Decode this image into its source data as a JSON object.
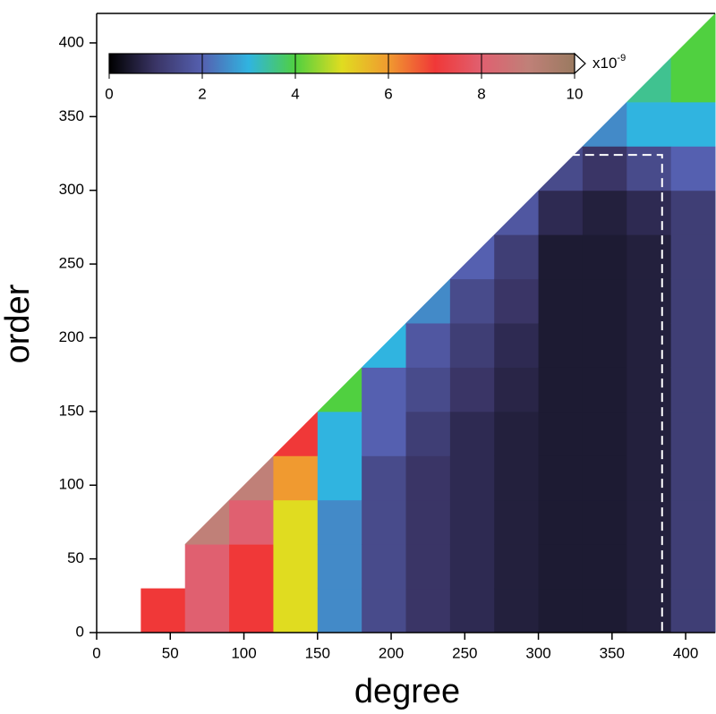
{
  "chart_data": {
    "type": "heatmap",
    "xlabel": "degree",
    "ylabel": "order",
    "xlim": [
      0,
      420
    ],
    "ylim": [
      0,
      420
    ],
    "xticks": [
      0,
      50,
      100,
      150,
      200,
      250,
      300,
      350,
      400
    ],
    "yticks": [
      0,
      50,
      100,
      150,
      200,
      250,
      300,
      350,
      400
    ],
    "x_bins": [
      0,
      30,
      60,
      90,
      120,
      150,
      180,
      210,
      240,
      270,
      300,
      330,
      360,
      390,
      420
    ],
    "y_bins": [
      0,
      30,
      60,
      90,
      120,
      150,
      180,
      210,
      240,
      270,
      300,
      330,
      360,
      390,
      420
    ],
    "values": [
      [
        null,
        null,
        null,
        null,
        null,
        null,
        null,
        null,
        null,
        null,
        null,
        null,
        null,
        null
      ],
      [
        7,
        null,
        null,
        null,
        null,
        null,
        null,
        null,
        null,
        null,
        null,
        null,
        null,
        null
      ],
      [
        8,
        8,
        9,
        null,
        null,
        null,
        null,
        null,
        null,
        null,
        null,
        null,
        null,
        null
      ],
      [
        7,
        7,
        8,
        9,
        null,
        null,
        null,
        null,
        null,
        null,
        null,
        null,
        null,
        null
      ],
      [
        5,
        5,
        5,
        6,
        7,
        null,
        null,
        null,
        null,
        null,
        null,
        null,
        null,
        null
      ],
      [
        2.5,
        2.5,
        2.5,
        3,
        3,
        4,
        null,
        null,
        null,
        null,
        null,
        null,
        null,
        null
      ],
      [
        1.5,
        1.5,
        1.5,
        1.5,
        2,
        2,
        3,
        null,
        null,
        null,
        null,
        null,
        null,
        null
      ],
      [
        1,
        1,
        1,
        1,
        1.2,
        1.5,
        1.8,
        2.5,
        null,
        null,
        null,
        null,
        null,
        null
      ],
      [
        0.8,
        0.8,
        0.8,
        0.8,
        0.8,
        1,
        1.2,
        1.5,
        2,
        null,
        null,
        null,
        null,
        null
      ],
      [
        0.6,
        0.6,
        0.6,
        0.6,
        0.6,
        0.7,
        0.8,
        1,
        1.2,
        1.8,
        null,
        null,
        null,
        null
      ],
      [
        0.5,
        0.5,
        0.5,
        0.5,
        0.5,
        0.5,
        0.5,
        0.5,
        0.5,
        0.8,
        1.5,
        null,
        null,
        null
      ],
      [
        0.5,
        0.5,
        0.5,
        0.5,
        0.5,
        0.5,
        0.5,
        0.5,
        0.5,
        0.6,
        1,
        2.5,
        null,
        null
      ],
      [
        0.6,
        0.6,
        0.6,
        0.6,
        0.6,
        0.6,
        0.6,
        0.6,
        0.6,
        0.8,
        1.5,
        3,
        3.5,
        null
      ],
      [
        1.2,
        1.2,
        1.2,
        1.2,
        1.2,
        1.2,
        1.2,
        1.2,
        1.2,
        1.2,
        2,
        3,
        4,
        4
      ]
    ],
    "clim": [
      0,
      10
    ],
    "cticks": [
      0,
      2,
      4,
      6,
      8,
      10
    ],
    "colorbar_unit": "x10",
    "colorbar_exponent": "-9",
    "colormap": [
      "#000000",
      "#3a3566",
      "#5560b0",
      "#30b4e0",
      "#50d040",
      "#e0dc20",
      "#f09a30",
      "#f03838",
      "#e06070",
      "#c08078",
      "#9a7a60"
    ],
    "annotation_line": {
      "x": [
        322,
        384,
        384
      ],
      "y": [
        324,
        324,
        0
      ],
      "color": "#ffffff"
    }
  }
}
